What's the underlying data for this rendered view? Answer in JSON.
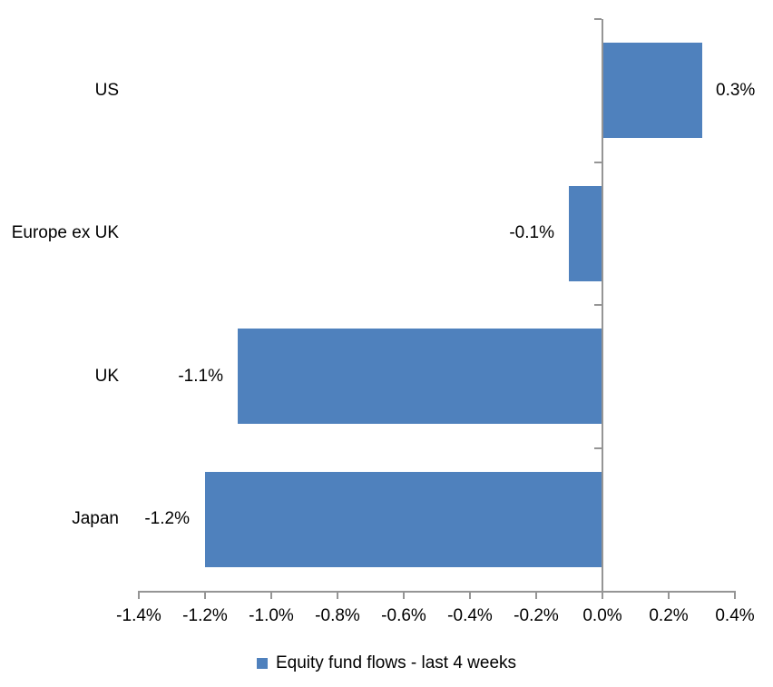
{
  "chart_data": {
    "type": "bar",
    "orientation": "horizontal",
    "title": "",
    "categories": [
      "US",
      "Europe ex UK",
      "UK",
      "Japan"
    ],
    "values": [
      0.3,
      -0.1,
      -1.1,
      -1.2
    ],
    "data_labels": [
      "0.3%",
      "-0.1%",
      "-1.1%",
      "-1.2%"
    ],
    "x_ticks": [
      {
        "label": "-1.4%",
        "value": -1.4
      },
      {
        "label": "-1.2%",
        "value": -1.2
      },
      {
        "label": "-1.0%",
        "value": -1.0
      },
      {
        "label": "-0.8%",
        "value": -0.8
      },
      {
        "label": "-0.6%",
        "value": -0.6
      },
      {
        "label": "-0.4%",
        "value": -0.4
      },
      {
        "label": "-0.2%",
        "value": -0.2
      },
      {
        "label": "0.0%",
        "value": 0.0
      },
      {
        "label": "0.2%",
        "value": 0.2
      },
      {
        "label": "0.4%",
        "value": 0.4
      }
    ],
    "xlim": [
      -1.4,
      0.4
    ],
    "grid": false,
    "legend": {
      "label": "Equity fund flows - last 4 weeks",
      "position": "bottom-center"
    }
  },
  "colors": {
    "bar": "#4F81BD",
    "axis": "#959595",
    "text": "#000000",
    "background": "#FFFFFF"
  }
}
